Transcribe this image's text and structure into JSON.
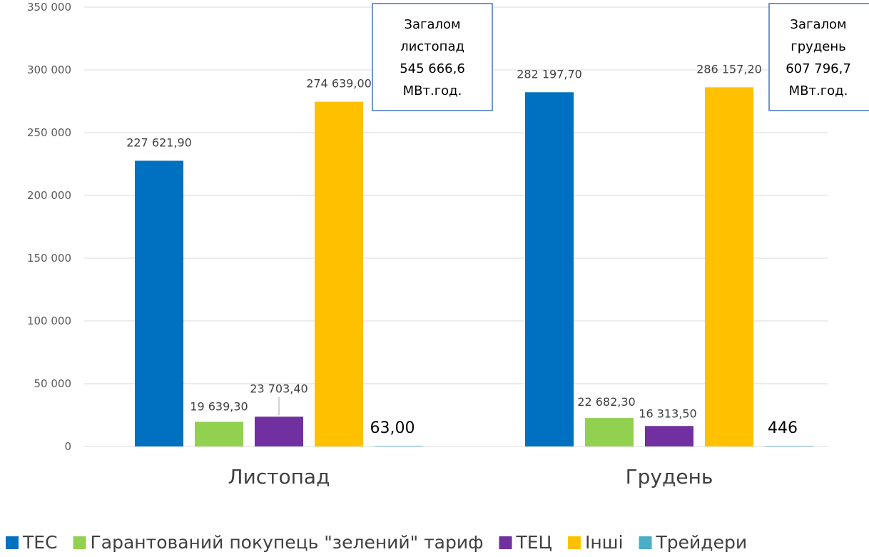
{
  "chart_data": {
    "type": "bar",
    "categories": [
      "Листопад",
      "Грудень"
    ],
    "ylim": [
      0,
      350000
    ],
    "yticks": [
      0,
      50000,
      100000,
      150000,
      200000,
      250000,
      300000,
      350000
    ],
    "ytick_labels": [
      "0",
      "50 000",
      "100 000",
      "150 000",
      "200 000",
      "250 000",
      "300 000",
      "350 000"
    ],
    "grid": true,
    "legend_position": "bottom",
    "series": [
      {
        "name": "ТЕС",
        "color": "#0070C0",
        "values": [
          227621.9,
          282197.7
        ],
        "labels": [
          "227 621,90",
          "282 197,70"
        ]
      },
      {
        "name": "Гарантований покупець \"зелений\" тариф",
        "color": "#92D050",
        "values": [
          19639.3,
          22682.3
        ],
        "labels": [
          "19 639,30",
          "22 682,30"
        ]
      },
      {
        "name": "ТЕЦ",
        "color": "#7030A0",
        "values": [
          23703.4,
          16313.5
        ],
        "labels": [
          "23 703,40",
          "16 313,50"
        ]
      },
      {
        "name": "Інші",
        "color": "#FFC000",
        "values": [
          274639.0,
          286157.2
        ],
        "labels": [
          "274 639,00",
          "286 157,20"
        ]
      },
      {
        "name": "Трейдери",
        "color": "#4BACC6",
        "values": [
          63.0,
          446.0
        ],
        "labels": [
          "63,00",
          "446"
        ]
      }
    ],
    "annotations": [
      {
        "lines": [
          "Загалом",
          "листопад",
          "545 666,6",
          "МВт.год."
        ]
      },
      {
        "lines": [
          "Загалом",
          "грудень",
          "607 796,7",
          "МВт.год."
        ]
      }
    ]
  }
}
